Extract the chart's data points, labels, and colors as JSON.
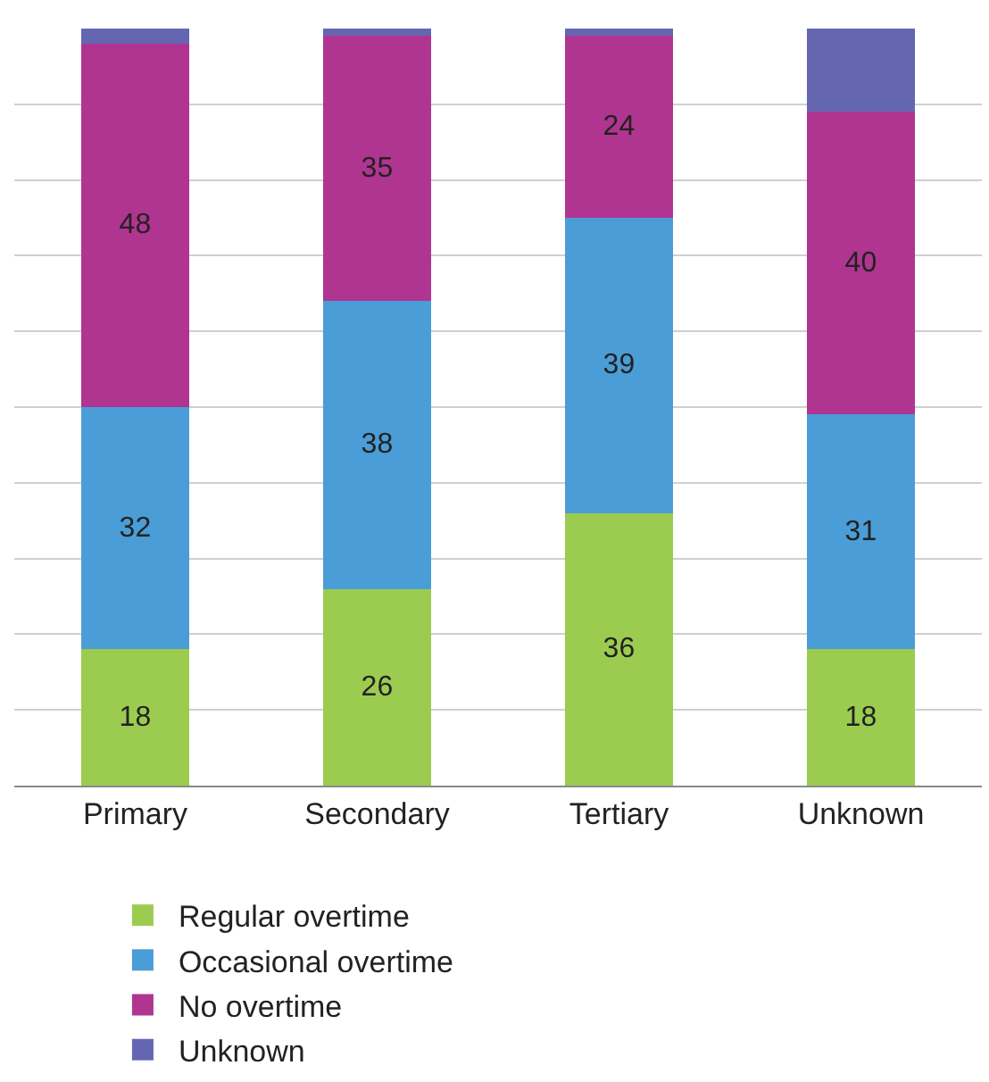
{
  "chart_data": {
    "type": "bar",
    "stacked": true,
    "categories": [
      "Primary",
      "Secondary",
      "Tertiary",
      "Unknown"
    ],
    "series": [
      {
        "name": "Regular overtime",
        "color": "#9bcc50",
        "values": [
          18,
          26,
          36,
          18
        ],
        "value_labels": [
          "18",
          "26",
          "36",
          "18"
        ]
      },
      {
        "name": "Occasional overtime",
        "color": "#4a9dd6",
        "values": [
          32,
          38,
          39,
          31
        ],
        "value_labels": [
          "32",
          "38",
          "39",
          "31"
        ]
      },
      {
        "name": "No overtime",
        "color": "#b03590",
        "values": [
          48,
          35,
          24,
          40
        ],
        "value_labels": [
          "48",
          "35",
          "24",
          "40"
        ]
      },
      {
        "name": "Unknown",
        "color": "#6566b2",
        "values": [
          2,
          1,
          1,
          11
        ],
        "value_labels": [
          null,
          null,
          null,
          null
        ]
      }
    ],
    "ylim": [
      0,
      100
    ],
    "yticks": [
      {
        "value": 0,
        "label": null
      },
      {
        "value": 10,
        "label": null
      },
      {
        "value": 20,
        "label": null
      },
      {
        "value": 30,
        "label": null
      },
      {
        "value": 40,
        "label": null
      },
      {
        "value": 50,
        "label": null
      },
      {
        "value": 60,
        "label": null
      },
      {
        "value": 70,
        "label": null
      },
      {
        "value": 80,
        "label": null
      },
      {
        "value": 90,
        "label": null
      }
    ],
    "tick_labels": "x",
    "grid": "y",
    "legend": "bottom"
  }
}
